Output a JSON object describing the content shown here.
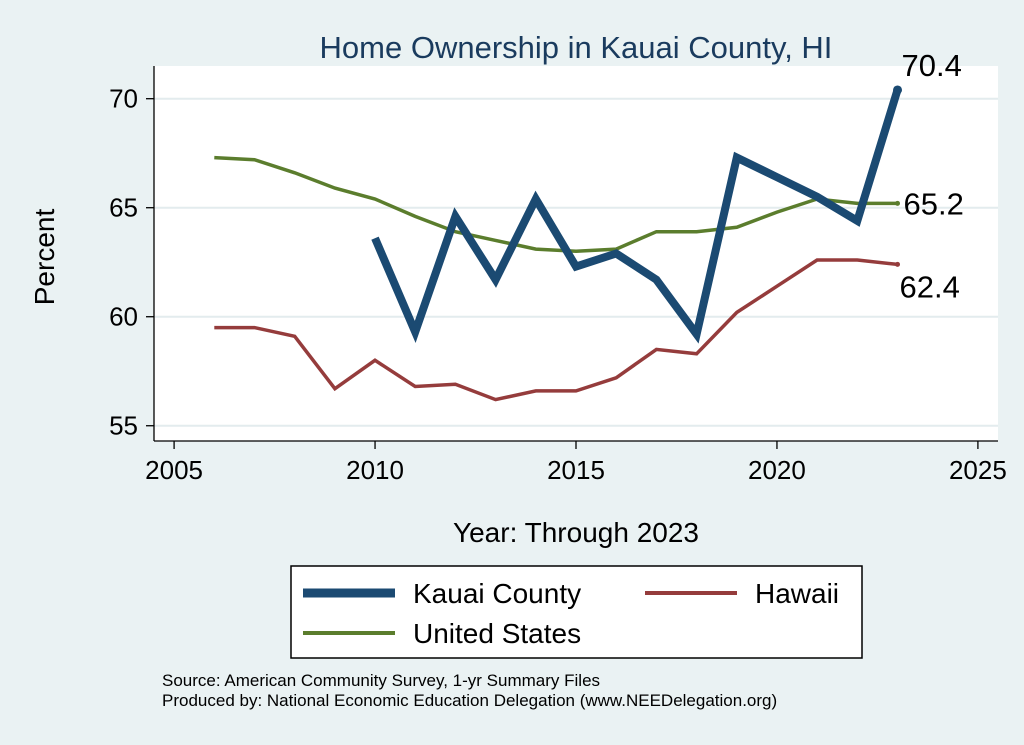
{
  "chart_data": {
    "type": "line",
    "title": "Home Ownership in Kauai County, HI",
    "xlabel": "Year: Through 2023",
    "ylabel": "Percent",
    "xlim": [
      2004.5,
      2025.5
    ],
    "ylim": [
      54.3,
      71.5
    ],
    "xticks": [
      2005,
      2010,
      2015,
      2020,
      2025
    ],
    "yticks": [
      55,
      60,
      65,
      70
    ],
    "grid": true,
    "legend_position": "bottom",
    "series": [
      {
        "name": "Kauai County",
        "color": "#1b4a72",
        "x": [
          2010,
          2011,
          2012,
          2013,
          2014,
          2015,
          2016,
          2017,
          2018,
          2019,
          2020,
          2021,
          2022,
          2023
        ],
        "y": [
          63.6,
          59.3,
          64.6,
          61.7,
          65.4,
          62.3,
          62.9,
          61.7,
          59.2,
          67.3,
          66.4,
          65.5,
          64.4,
          70.4
        ]
      },
      {
        "name": "Hawaii",
        "color": "#953c3c",
        "x": [
          2006,
          2007,
          2008,
          2009,
          2010,
          2011,
          2012,
          2013,
          2014,
          2015,
          2016,
          2017,
          2018,
          2019,
          2020,
          2021,
          2022,
          2023
        ],
        "y": [
          59.5,
          59.5,
          59.1,
          56.7,
          58.0,
          56.8,
          56.9,
          56.2,
          56.6,
          56.6,
          57.2,
          58.5,
          58.3,
          60.2,
          61.4,
          62.6,
          62.6,
          62.4
        ]
      },
      {
        "name": "United States",
        "color": "#5b7d2d",
        "x": [
          2006,
          2007,
          2008,
          2009,
          2010,
          2011,
          2012,
          2013,
          2014,
          2015,
          2016,
          2017,
          2018,
          2019,
          2020,
          2021,
          2022,
          2023
        ],
        "y": [
          67.3,
          67.2,
          66.6,
          65.9,
          65.4,
          64.6,
          63.9,
          63.5,
          63.1,
          63.0,
          63.1,
          63.9,
          63.9,
          64.1,
          64.8,
          65.4,
          65.2,
          65.2
        ]
      }
    ],
    "end_labels": [
      {
        "series": "Kauai County",
        "text": "70.4"
      },
      {
        "series": "United States",
        "text": "65.2"
      },
      {
        "series": "Hawaii",
        "text": "62.4"
      }
    ],
    "legend": [
      {
        "series": "Kauai County",
        "label": "Kauai County"
      },
      {
        "series": "Hawaii",
        "label": "Hawaii"
      },
      {
        "series": "United States",
        "label": "United States"
      }
    ]
  },
  "footer": {
    "source": "Source: American Community Survey, 1-yr Summary Files",
    "produced_by": "Produced by: National Economic Education Delegation (www.NEEDelegation.org)"
  },
  "colors": {
    "background": "#eaf2f3",
    "plot_background": "#ffffff",
    "grid": "#e3ecee"
  }
}
